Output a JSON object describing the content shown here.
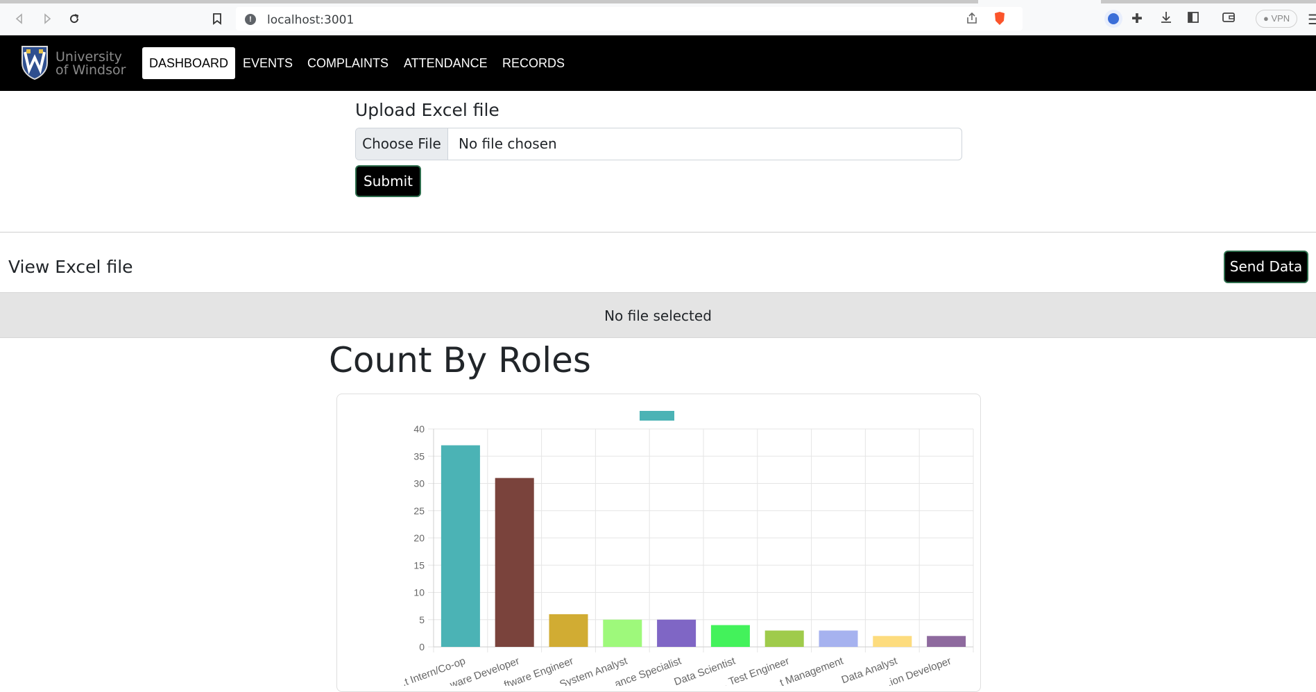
{
  "browser": {
    "url": "localhost:3001",
    "vpn_label": "VPN"
  },
  "navbar": {
    "logo_line1": "University",
    "logo_line2": "of Windsor",
    "items": [
      {
        "label": "DASHBOARD",
        "active": true
      },
      {
        "label": "EVENTS",
        "active": false
      },
      {
        "label": "COMPLAINTS",
        "active": false
      },
      {
        "label": "ATTENDANCE",
        "active": false
      },
      {
        "label": "RECORDS",
        "active": false
      }
    ]
  },
  "upload": {
    "title": "Upload Excel file",
    "choose_label": "Choose File",
    "file_status": "No file chosen",
    "submit_label": "Submit"
  },
  "view": {
    "title": "View Excel file",
    "send_label": "Send Data",
    "empty_text": "No file selected"
  },
  "chart_section": {
    "title": "Count By Roles"
  },
  "chart_data": {
    "type": "bar",
    "categories": [
      "Intern/Co-op",
      "Software Developer",
      "Software Engineer",
      "System Analyst",
      "Compliance Specialist",
      "Data Scientist",
      "Test Engineer",
      "Management",
      "Data Analyst",
      "Application Developer"
    ],
    "visible_category_labels": [
      "...t Intern/Co-op",
      "...ware Developer",
      "...ftware Engineer",
      "System Analyst",
      "...ance Specialist",
      "Data Scientist",
      "... Test Engineer",
      "...t Management",
      "Data Analyst",
      "...ion Developer"
    ],
    "values": [
      37,
      31,
      6,
      5,
      5,
      4,
      3,
      3,
      2,
      2
    ],
    "colors": [
      "#4bb3b5",
      "#7a433c",
      "#d1ac33",
      "#9ef97b",
      "#7f66c5",
      "#43f25b",
      "#9fcb4b",
      "#a6b2ef",
      "#fddc7e",
      "#8e6a9e"
    ],
    "ylim": [
      0,
      40
    ],
    "yticks": [
      0,
      5,
      10,
      15,
      20,
      25,
      30,
      35,
      40
    ],
    "legend_color": "#4bb3b5",
    "grid": true,
    "legend_placement": "top-center"
  }
}
